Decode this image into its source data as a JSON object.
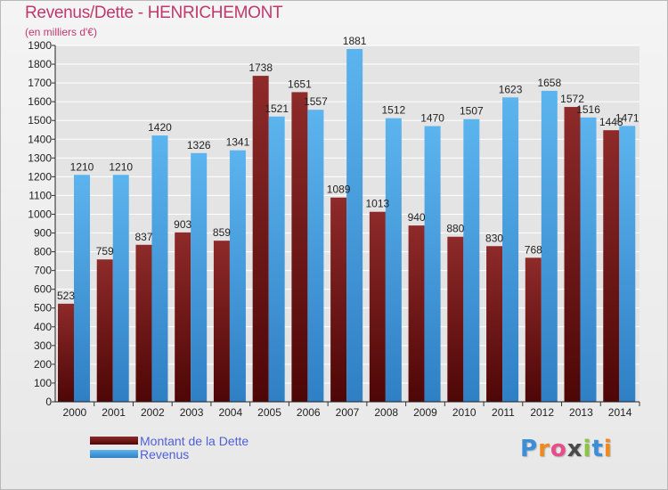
{
  "header": {
    "title": "Revenus/Dette - HENRICHEMONT",
    "subtitle": "(en milliers d'€)"
  },
  "chart_data": {
    "type": "bar",
    "title": "Revenus/Dette - HENRICHEMONT",
    "ylabel": "(en milliers d'€)",
    "ylim": [
      0,
      1900
    ],
    "yticks": [
      0,
      100,
      200,
      300,
      400,
      500,
      600,
      700,
      800,
      900,
      1000,
      1100,
      1200,
      1300,
      1400,
      1500,
      1600,
      1700,
      1800,
      1900
    ],
    "grid": true,
    "legend": "bottom-left",
    "categories": [
      "2000",
      "2001",
      "2002",
      "2003",
      "2004",
      "2005",
      "2006",
      "2007",
      "2008",
      "2009",
      "2010",
      "2011",
      "2012",
      "2013",
      "2014"
    ],
    "series": [
      {
        "name": "Montant de la Dette",
        "color": "#7a1a1a",
        "values": [
          523,
          759,
          837,
          903,
          859,
          1738,
          1651,
          1089,
          1013,
          940,
          880,
          830,
          768,
          1572,
          1448
        ]
      },
      {
        "name": "Revenus",
        "color": "#3a9ce0",
        "values": [
          1210,
          1210,
          1420,
          1326,
          1341,
          1521,
          1557,
          1881,
          1512,
          1470,
          1507,
          1623,
          1658,
          1516,
          1471
        ]
      }
    ]
  },
  "logo": {
    "letters": [
      "P",
      "r",
      "o",
      "x",
      "i",
      "t",
      "i"
    ],
    "colors": [
      "#3a8fd8",
      "#f08a1e",
      "#e84c8a",
      "#4a4a4a",
      "#8cc63f",
      "#3a8fd8",
      "#f08a1e"
    ]
  }
}
